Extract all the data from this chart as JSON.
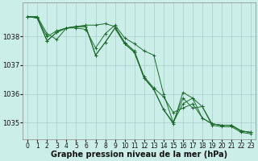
{
  "background_color": "#cceee8",
  "grid_color": "#aacccc",
  "line_color": "#1a6b2a",
  "marker_color": "#1a6b2a",
  "xlabel": "Graphe pression niveau de la mer (hPa)",
  "xlabel_fontsize": 7,
  "tick_fontsize": 5.5,
  "xlim": [
    -0.5,
    23.5
  ],
  "ylim": [
    1034.4,
    1039.2
  ],
  "yticks": [
    1035,
    1036,
    1037,
    1038
  ],
  "xticks": [
    0,
    1,
    2,
    3,
    4,
    5,
    6,
    7,
    8,
    9,
    10,
    11,
    12,
    13,
    14,
    15,
    16,
    17,
    18,
    19,
    20,
    21,
    22,
    23
  ],
  "series": [
    [
      1038.7,
      1038.7,
      1038.1,
      1037.9,
      1038.3,
      1038.3,
      1038.25,
      1037.6,
      1038.1,
      1038.4,
      1037.95,
      1037.75,
      1037.5,
      1037.35,
      1036.0,
      1035.0,
      1035.85,
      1035.5,
      1035.55,
      1034.9,
      1034.85,
      1034.85,
      1034.65,
      1034.6
    ],
    [
      1038.7,
      1038.65,
      1038.0,
      1038.2,
      1038.3,
      1038.35,
      1038.4,
      1038.4,
      1038.45,
      1038.35,
      1037.8,
      1037.5,
      1036.6,
      1036.2,
      1035.9,
      1035.35,
      1035.5,
      1035.65,
      1035.15,
      1034.95,
      1034.9,
      1034.9,
      1034.7,
      1034.65
    ],
    [
      1038.7,
      1038.65,
      1037.85,
      1038.15,
      1038.3,
      1038.35,
      1038.35,
      1037.35,
      1037.8,
      1038.3,
      1037.75,
      1037.45,
      1036.55,
      1036.15,
      1035.45,
      1035.0,
      1035.65,
      1035.85,
      1035.55,
      1034.95,
      1034.9,
      1034.9,
      1034.7,
      1034.65
    ],
    [
      1038.7,
      1038.65,
      1037.85,
      1038.15,
      1038.3,
      1038.35,
      1038.35,
      1037.35,
      1037.8,
      1038.3,
      1037.75,
      1037.45,
      1036.55,
      1036.15,
      1035.45,
      1034.95,
      1036.05,
      1035.85,
      1035.15,
      1034.95,
      1034.9,
      1034.9,
      1034.7,
      1034.65
    ]
  ]
}
